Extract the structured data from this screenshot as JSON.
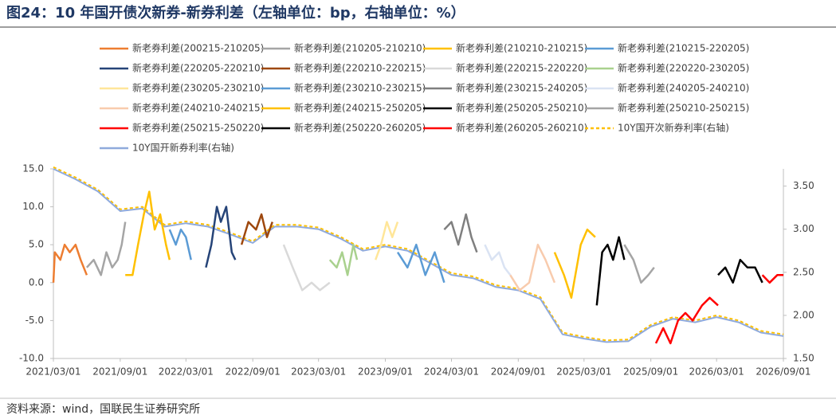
{
  "title": "图24：10 年国开债次新券-新券利差（左轴单位：bp，右轴单位：%）",
  "source": "资料来源：wind，国联民生证券研究所",
  "chart_data": {
    "type": "line",
    "xlim": [
      "2021/03/01",
      "2026/09/01"
    ],
    "xticks": [
      "2021/03/01",
      "2021/09/01",
      "2022/03/01",
      "2022/09/01",
      "2023/03/01",
      "2023/09/01",
      "2024/03/01",
      "2024/09/01",
      "2025/03/01",
      "2025/09/01",
      "2026/03/01",
      "2026/09/01"
    ],
    "ylim": [
      -10,
      15
    ],
    "yticks": [
      {
        "value": -10,
        "label": "-10.0"
      },
      {
        "value": -5,
        "label": "-5.0"
      },
      {
        "value": 0,
        "label": "0.0"
      },
      {
        "value": 5,
        "label": "5.0"
      },
      {
        "value": 10,
        "label": "10.0"
      },
      {
        "value": 15,
        "label": "15.0"
      }
    ],
    "y2lim": [
      1.5,
      3.7
    ],
    "y2ticks": [
      {
        "value": 1.5,
        "label": "1.50"
      },
      {
        "value": 2,
        "label": "2.00"
      },
      {
        "value": 2.5,
        "label": "2.50"
      },
      {
        "value": 3,
        "label": "3.00"
      },
      {
        "value": 3.5,
        "label": "3.50"
      }
    ],
    "series": [
      {
        "name": "新老券利差(200215-210205)",
        "color": "#ED7D31",
        "x": [
          "2021/03/01",
          "2021/03/05",
          "2021/03/20",
          "2021/04/01",
          "2021/04/15",
          "2021/05/01",
          "2021/05/15",
          "2021/06/01"
        ],
        "values": [
          0,
          4,
          3,
          5,
          4,
          5,
          3,
          1
        ]
      },
      {
        "name": "新老券利差(210205-210210)",
        "color": "#A5A5A5",
        "x": [
          "2021/06/01",
          "2021/06/20",
          "2021/07/10",
          "2021/07/25",
          "2021/08/10",
          "2021/08/25",
          "2021/09/05",
          "2021/09/15"
        ],
        "values": [
          2,
          3,
          1,
          4,
          2,
          3,
          5,
          8
        ]
      },
      {
        "name": "新老券利差(210210-210215)",
        "color": "#FFC000",
        "x": [
          "2021/09/15",
          "2021/10/05",
          "2021/10/20",
          "2021/11/05",
          "2021/11/20",
          "2021/12/05",
          "2021/12/20",
          "2022/01/05",
          "2022/01/15"
        ],
        "values": [
          1,
          1,
          5,
          9,
          12,
          7,
          9,
          5,
          3
        ]
      },
      {
        "name": "新老券利差(210215-220205)",
        "color": "#5B9BD5",
        "x": [
          "2022/01/15",
          "2022/02/01",
          "2022/02/15",
          "2022/03/01",
          "2022/03/15"
        ],
        "values": [
          7,
          5,
          7,
          6,
          3
        ]
      },
      {
        "name": "新老券利差(220205-220210)",
        "color": "#264478",
        "x": [
          "2022/04/25",
          "2022/05/10",
          "2022/05/25",
          "2022/06/05",
          "2022/06/20",
          "2022/07/05",
          "2022/07/15"
        ],
        "values": [
          2,
          5,
          10,
          8,
          10,
          4,
          3
        ]
      },
      {
        "name": "新老券利差(220210-220215)",
        "color": "#9E480E",
        "x": [
          "2022/08/01",
          "2022/08/20",
          "2022/09/10",
          "2022/09/25",
          "2022/10/10",
          "2022/10/25"
        ],
        "values": [
          5,
          8,
          7,
          9,
          6,
          8
        ]
      },
      {
        "name": "新老券利差(220215-220220)",
        "color": "#D9D9D9",
        "x": [
          "2022/11/25",
          "2022/12/20",
          "2023/01/15",
          "2023/02/10",
          "2023/03/05",
          "2023/04/01"
        ],
        "values": [
          5,
          2,
          -1,
          0,
          -1,
          0
        ]
      },
      {
        "name": "新老券利差(220220-230205)",
        "color": "#A9D18E",
        "x": [
          "2023/04/01",
          "2023/04/20",
          "2023/05/05",
          "2023/05/20",
          "2023/06/05",
          "2023/06/15"
        ],
        "values": [
          3,
          2,
          4,
          1,
          5,
          3
        ]
      },
      {
        "name": "新老券利差(230205-230210)",
        "color": "#FFE699",
        "x": [
          "2023/08/05",
          "2023/08/20",
          "2023/09/05",
          "2023/09/20",
          "2023/10/05"
        ],
        "values": [
          3,
          5,
          8,
          6,
          8
        ]
      },
      {
        "name": "新老券利差(230210-230215)",
        "color": "#5B9BD5",
        "x": [
          "2023/10/05",
          "2023/11/01",
          "2023/11/25",
          "2023/12/20",
          "2024/01/15",
          "2024/02/10"
        ],
        "values": [
          4,
          2,
          5,
          1,
          4,
          0
        ]
      },
      {
        "name": "新老券利差(230215-240205)",
        "color": "#7F7F7F",
        "x": [
          "2024/02/10",
          "2024/03/01",
          "2024/03/20",
          "2024/04/10",
          "2024/04/25",
          "2024/05/10"
        ],
        "values": [
          7,
          8,
          5,
          9,
          6,
          4
        ]
      },
      {
        "name": "新老券利差(240205-240210)",
        "color": "#DAE3F3",
        "x": [
          "2024/06/01",
          "2024/06/20",
          "2024/07/10",
          "2024/07/25",
          "2024/08/10"
        ],
        "values": [
          5,
          3,
          4,
          2,
          1
        ]
      },
      {
        "name": "新老券利差(240210-240215)",
        "color": "#F8CBAD",
        "x": [
          "2024/08/10",
          "2024/09/05",
          "2024/10/01",
          "2024/10/25",
          "2024/11/15",
          "2024/12/10"
        ],
        "values": [
          1,
          -1,
          0,
          5,
          3,
          0
        ]
      },
      {
        "name": "新老券利差(240215-250205)",
        "color": "#FFC000",
        "x": [
          "2024/12/10",
          "2025/01/05",
          "2025/01/25",
          "2025/02/20",
          "2025/03/10",
          "2025/04/01"
        ],
        "values": [
          4,
          1,
          -2,
          5,
          7,
          6
        ]
      },
      {
        "name": "新老券利差(250205-250210)",
        "color": "#000000",
        "x": [
          "2025/04/05",
          "2025/04/20",
          "2025/05/05",
          "2025/05/20",
          "2025/06/05",
          "2025/06/20"
        ],
        "values": [
          -3,
          4,
          5,
          3,
          6,
          3
        ]
      },
      {
        "name": "新老券利差(250210-250215)",
        "color": "#A5A5A5",
        "x": [
          "2025/06/20",
          "2025/07/15",
          "2025/08/05",
          "2025/08/25",
          "2025/09/10"
        ],
        "values": [
          5,
          3,
          0,
          1,
          2
        ]
      },
      {
        "name": "新老券利差(250215-250220)",
        "color": "#FF0000",
        "x": [
          "2025/09/15",
          "2025/10/05",
          "2025/10/25",
          "2025/11/15",
          "2025/12/05",
          "2025/12/25",
          "2026/01/20",
          "2026/02/10",
          "2026/03/05"
        ],
        "values": [
          -8,
          -6,
          -8,
          -5,
          -4,
          -5,
          -3,
          -2,
          -3
        ]
      },
      {
        "name": "新老券利差(250220-260205)",
        "color": "#000000",
        "x": [
          "2026/03/05",
          "2026/03/25",
          "2026/04/15",
          "2026/05/05",
          "2026/05/25",
          "2026/06/15",
          "2026/07/05"
        ],
        "values": [
          1,
          2,
          0,
          3,
          2,
          2,
          0
        ]
      },
      {
        "name": "新老券利差(260205-260210)",
        "color": "#FF0000",
        "x": [
          "2026/07/05",
          "2026/07/25",
          "2026/08/15",
          "2026/09/01"
        ],
        "values": [
          1,
          0,
          1,
          1
        ]
      },
      {
        "name": "10Y国开次新券利率(右轴)",
        "color": "#FFC000",
        "axis": "y2",
        "dash": true,
        "x": [
          "2021/03/01",
          "2021/05/01",
          "2021/07/01",
          "2021/09/01",
          "2021/11/01",
          "2022/01/01",
          "2022/03/01",
          "2022/05/01",
          "2022/07/01",
          "2022/09/01",
          "2022/11/01",
          "2023/01/01",
          "2023/03/01",
          "2023/05/01",
          "2023/07/01",
          "2023/09/01",
          "2023/11/01",
          "2024/01/01",
          "2024/03/01",
          "2024/05/01",
          "2024/07/01",
          "2024/09/01",
          "2024/11/01",
          "2025/01/01",
          "2025/03/01",
          "2025/05/01",
          "2025/07/01",
          "2025/09/01",
          "2025/11/01",
          "2026/01/01",
          "2026/03/01",
          "2026/05/01",
          "2026/07/01",
          "2026/09/01"
        ],
        "values": [
          3.72,
          3.6,
          3.46,
          3.23,
          3.26,
          3.05,
          3.09,
          3.05,
          2.96,
          2.86,
          3.05,
          3.05,
          3.02,
          2.91,
          2.77,
          2.82,
          2.77,
          2.63,
          2.49,
          2.45,
          2.35,
          2.31,
          2.21,
          1.8,
          1.75,
          1.71,
          1.72,
          1.89,
          1.98,
          1.94,
          2.0,
          1.94,
          1.82,
          1.78
        ]
      },
      {
        "name": "10Y国开新券利率(右轴)",
        "color": "#8FAADC",
        "axis": "y2",
        "x": [
          "2021/03/01",
          "2021/05/01",
          "2021/07/01",
          "2021/09/01",
          "2021/11/01",
          "2022/01/01",
          "2022/03/01",
          "2022/05/01",
          "2022/07/01",
          "2022/09/01",
          "2022/11/01",
          "2023/01/01",
          "2023/03/01",
          "2023/05/01",
          "2023/07/01",
          "2023/09/01",
          "2023/11/01",
          "2024/01/01",
          "2024/03/01",
          "2024/05/01",
          "2024/07/01",
          "2024/09/01",
          "2024/11/01",
          "2025/01/01",
          "2025/03/01",
          "2025/05/01",
          "2025/07/01",
          "2025/09/01",
          "2025/11/01",
          "2026/01/01",
          "2026/03/01",
          "2026/05/01",
          "2026/07/01",
          "2026/09/01"
        ],
        "values": [
          3.7,
          3.58,
          3.44,
          3.21,
          3.24,
          3.03,
          3.07,
          3.03,
          2.94,
          2.84,
          3.03,
          3.03,
          3.0,
          2.89,
          2.75,
          2.8,
          2.75,
          2.61,
          2.47,
          2.43,
          2.33,
          2.29,
          2.19,
          1.78,
          1.73,
          1.69,
          1.7,
          1.87,
          1.96,
          1.92,
          1.98,
          1.92,
          1.8,
          1.76
        ]
      }
    ]
  }
}
